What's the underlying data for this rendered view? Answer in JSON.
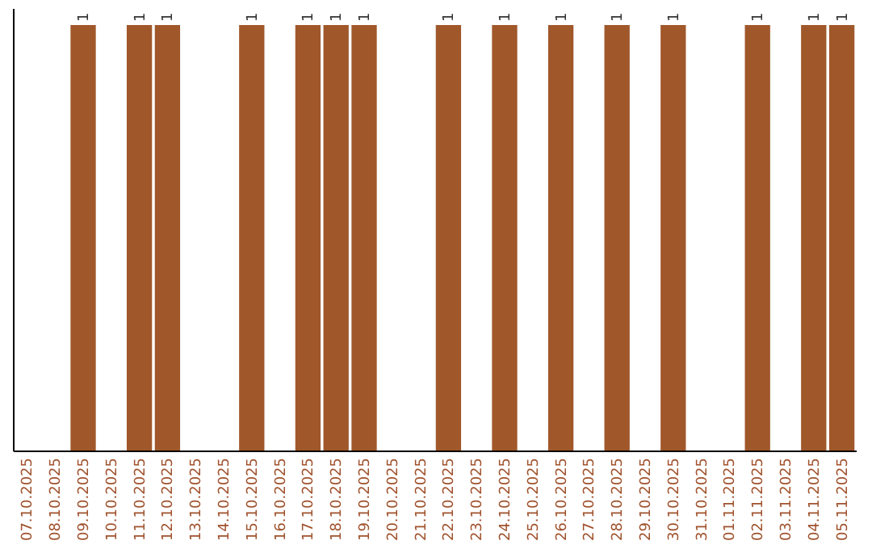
{
  "chart_data": {
    "type": "bar",
    "categories": [
      "07.10.2025",
      "08.10.2025",
      "09.10.2025",
      "10.10.2025",
      "11.10.2025",
      "12.10.2025",
      "13.10.2025",
      "14.10.2025",
      "15.10.2025",
      "16.10.2025",
      "17.10.2025",
      "18.10.2025",
      "19.10.2025",
      "20.10.2025",
      "21.10.2025",
      "22.10.2025",
      "23.10.2025",
      "24.10.2025",
      "25.10.2025",
      "26.10.2025",
      "27.10.2025",
      "28.10.2025",
      "29.10.2025",
      "30.10.2025",
      "31.10.2025",
      "01.11.2025",
      "02.11.2025",
      "03.11.2025",
      "04.11.2025",
      "05.11.2025"
    ],
    "values": [
      null,
      null,
      1,
      null,
      1,
      1,
      null,
      null,
      1,
      null,
      1,
      1,
      1,
      null,
      null,
      1,
      null,
      1,
      null,
      1,
      null,
      1,
      null,
      1,
      null,
      null,
      1,
      null,
      1,
      1
    ],
    "color": "#a0572a",
    "data_labels": true
  }
}
